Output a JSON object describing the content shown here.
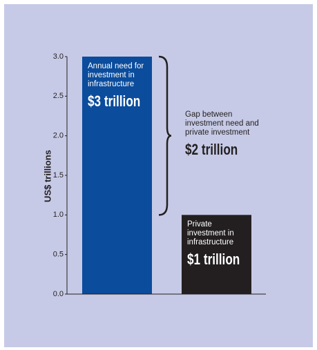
{
  "chart_data": {
    "type": "bar",
    "y_label": "US$ trillions",
    "categories": [
      "Annual need for investment in infrastructure",
      "Private investment in infrastructure"
    ],
    "series": [
      {
        "values": [
          3,
          1
        ],
        "value_labels": [
          "$3 trillion",
          "$1 trillion"
        ],
        "colors": [
          "#0b4c9c",
          "#231f20"
        ]
      }
    ],
    "ylim": [
      0,
      3
    ],
    "yticks": [
      {
        "value": 0,
        "label": "0.0"
      },
      0.5,
      {
        "value": 1,
        "label": "1.0"
      },
      1.5,
      {
        "value": 2,
        "label": "2.0"
      },
      2.5,
      {
        "value": 3,
        "label": "3.0"
      }
    ],
    "annotation": {
      "text": "Gap between investment need and private investment",
      "value": 2,
      "value_label": "$2 trillion"
    }
  }
}
